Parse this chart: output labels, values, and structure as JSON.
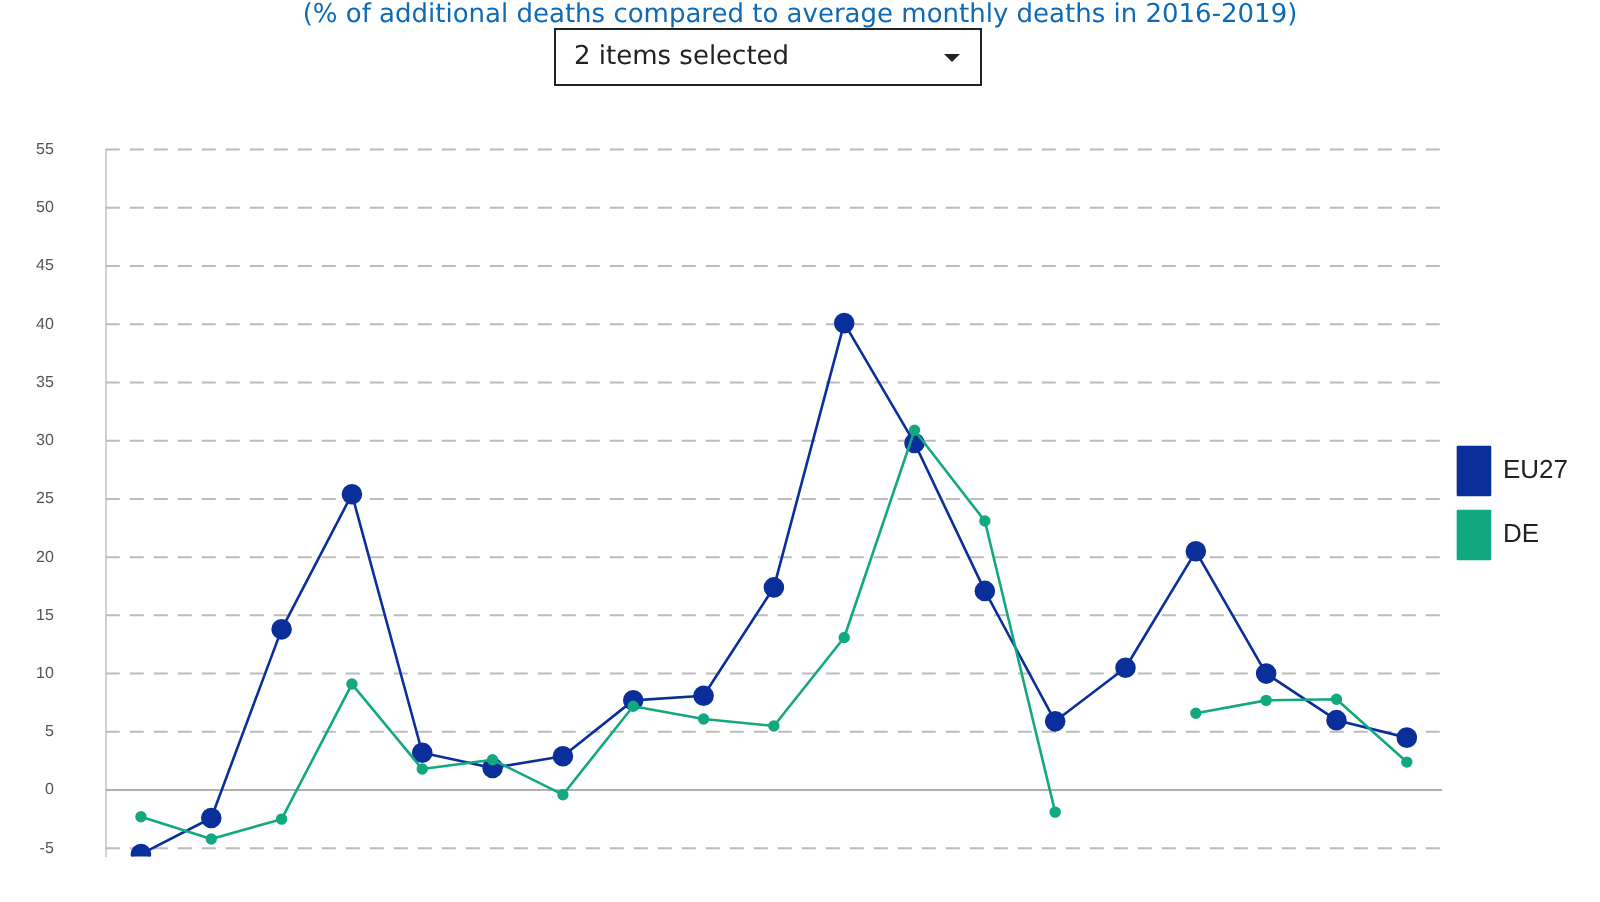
{
  "chart_data": {
    "type": "line",
    "subtitle": "(% of additional deaths compared to average monthly deaths in 2016-2019)",
    "annotations": [
      "2 items selected"
    ],
    "categories": [
      null,
      null,
      null,
      null,
      null,
      null,
      null,
      null,
      null,
      null,
      null,
      null,
      null,
      null,
      null,
      null,
      null,
      null,
      null
    ],
    "series": [
      {
        "name": "EU27",
        "color": "#0a2f9a",
        "values": [
          -5.5,
          -2.4,
          13.8,
          25.4,
          3.2,
          1.9,
          2.9,
          7.7,
          8.1,
          17.4,
          40.1,
          29.8,
          17.1,
          5.9,
          10.5,
          20.5,
          10.0,
          6.0,
          4.5
        ]
      },
      {
        "name": "DE",
        "color": "#12a880",
        "values": [
          -2.3,
          -4.2,
          -2.5,
          9.1,
          1.8,
          2.6,
          -0.4,
          7.2,
          6.1,
          5.5,
          13.1,
          30.9,
          23.1,
          -1.9,
          null,
          6.6,
          7.7,
          7.8,
          2.4
        ]
      }
    ],
    "ylim": [
      -5.7,
      55
    ],
    "yticks": [
      -5,
      0,
      5,
      10,
      15,
      20,
      25,
      30,
      35,
      40,
      45,
      50,
      55
    ],
    "grid": "y",
    "legend": "right",
    "tick_labels": "y",
    "marker": "circle",
    "line_style": "solid"
  }
}
